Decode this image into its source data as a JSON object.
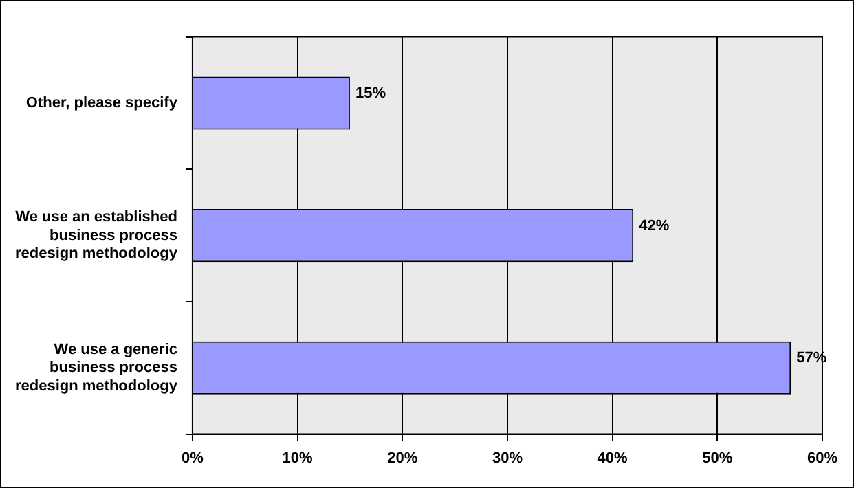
{
  "chart_data": {
    "type": "bar",
    "orientation": "horizontal",
    "categories": [
      "Other, please specify",
      "We use an established\nbusiness process\nredesign methodology",
      "We use a generic\nbusiness process\nredesign methodology"
    ],
    "values": [
      15,
      42,
      57
    ],
    "color": "#9999ff",
    "value_labels": [
      "15%",
      "42%",
      "57%"
    ],
    "xlim": [
      0,
      60
    ],
    "xticks": [
      {
        "value": 0,
        "label": "0%"
      },
      {
        "value": 10,
        "label": "10%"
      },
      {
        "value": 20,
        "label": "20%"
      },
      {
        "value": 30,
        "label": "30%"
      },
      {
        "value": 40,
        "label": "40%"
      },
      {
        "value": 50,
        "label": "50%"
      },
      {
        "value": 60,
        "label": "60%"
      }
    ],
    "grid": "x",
    "legend": false
  }
}
